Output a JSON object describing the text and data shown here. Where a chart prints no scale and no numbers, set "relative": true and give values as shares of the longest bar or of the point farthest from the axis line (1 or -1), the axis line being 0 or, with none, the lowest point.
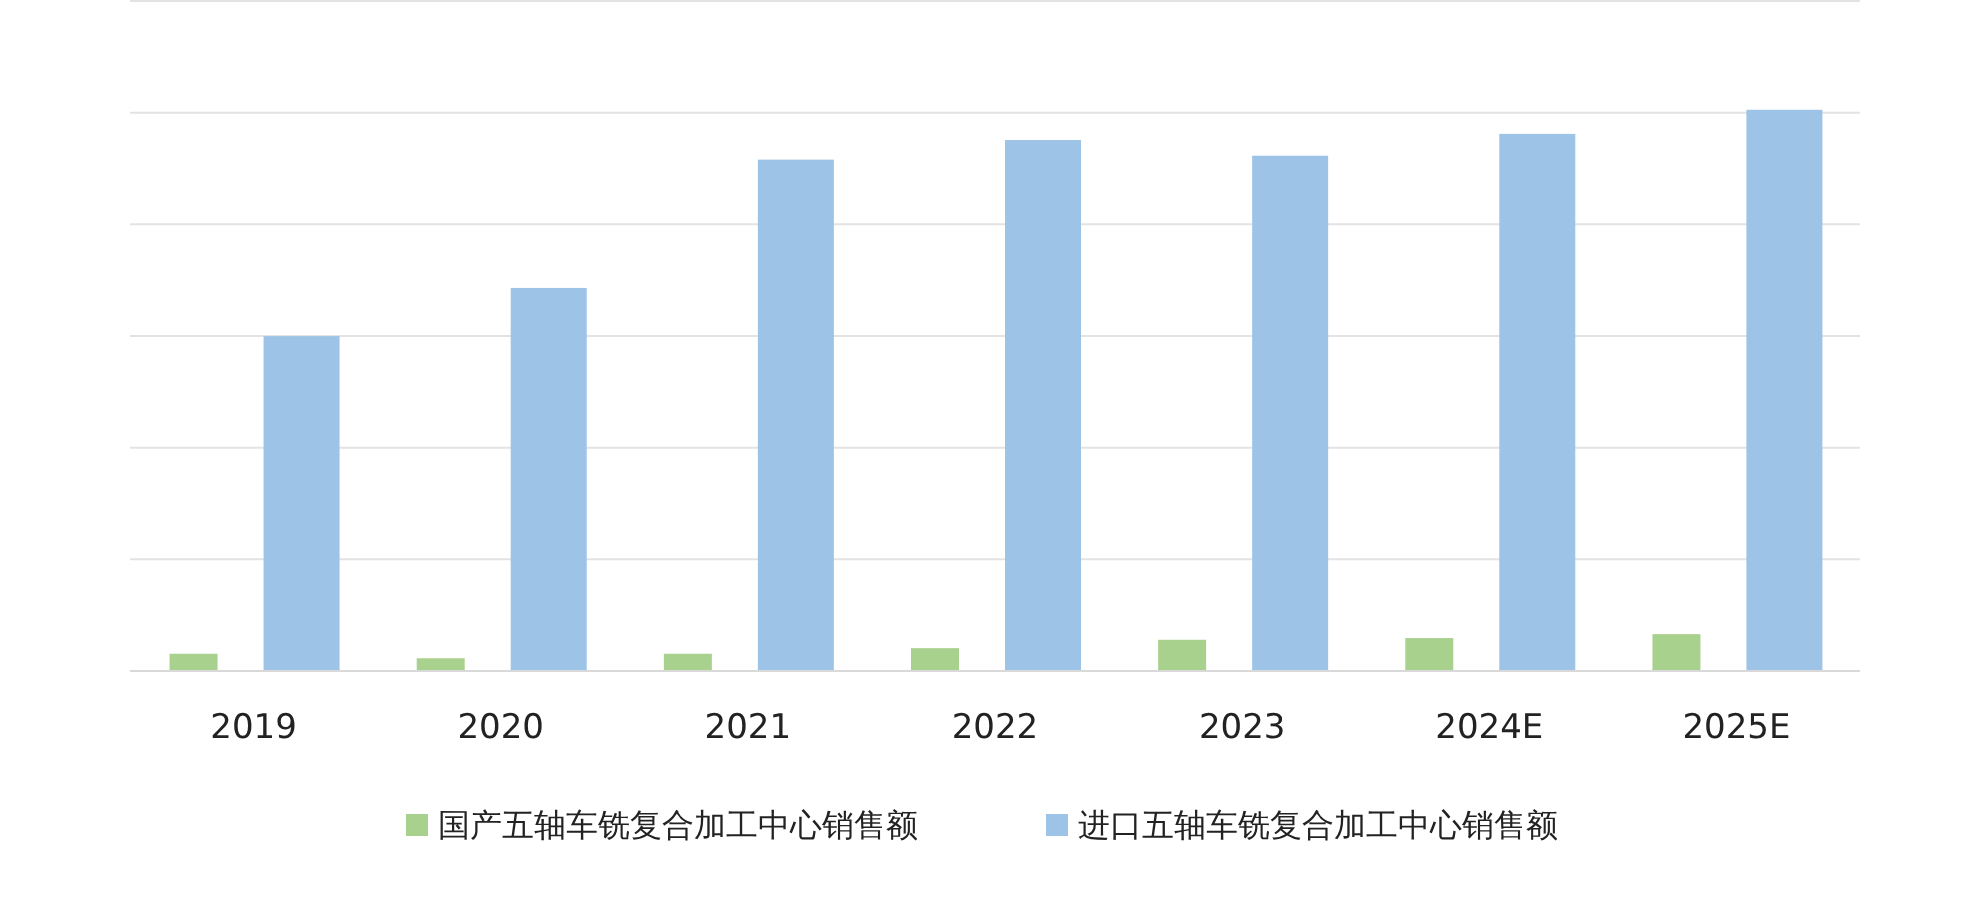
{
  "chart_data": {
    "type": "bar",
    "relative": true,
    "grid": "y",
    "legend": "bottom",
    "categories": [
      "2019",
      "2020",
      "2021",
      "2022",
      "2023",
      "2024E",
      "2025E"
    ],
    "series": [
      {
        "name": "国产五轴车铣复合加工中心销售额",
        "color": "#a9d18e",
        "values": [
          0.029,
          0.021,
          0.029,
          0.039,
          0.054,
          0.057,
          0.064
        ]
      },
      {
        "name": "进口五轴车铣复合加工中心销售额",
        "color": "#9dc3e6",
        "values": [
          0.596,
          0.682,
          0.911,
          0.946,
          0.918,
          0.957,
          1
        ]
      }
    ]
  }
}
